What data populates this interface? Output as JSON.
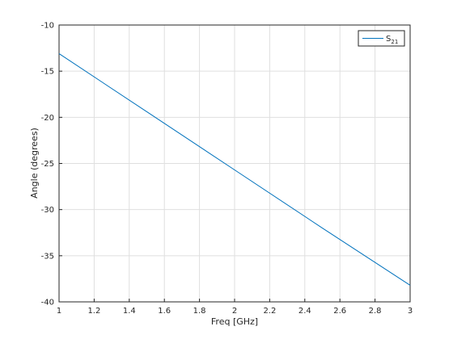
{
  "chart_data": {
    "type": "line",
    "xlabel": "Freq [GHz]",
    "ylabel": "Angle (degrees)",
    "x": [
      1,
      1.5,
      2,
      2.5,
      3
    ],
    "series": [
      {
        "name": "S21",
        "color": "#0072bd",
        "values": [
          -13.1,
          -19.4,
          -25.7,
          -32.0,
          -38.2
        ]
      }
    ],
    "xlim": [
      1,
      3
    ],
    "xticks": [
      1,
      1.2,
      1.4,
      1.6,
      1.8,
      2,
      2.2,
      2.4,
      2.6,
      2.8,
      3
    ],
    "ylim": [
      -40,
      -10
    ],
    "yticks": [
      -40,
      -35,
      -30,
      -25,
      -20,
      -15,
      -10
    ],
    "grid": true,
    "legend": "northeast"
  }
}
